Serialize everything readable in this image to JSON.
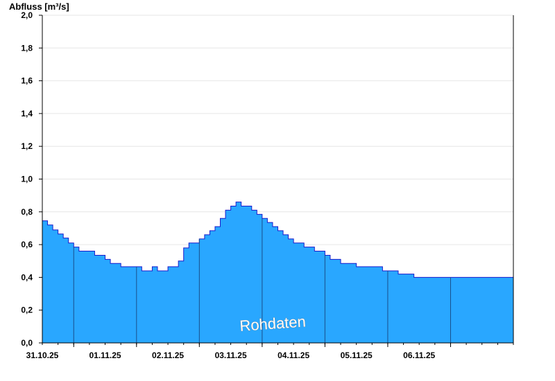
{
  "chart_data": {
    "type": "area",
    "ylabel": "Abfluss [m³/s]",
    "xlabel": "",
    "ylim": [
      0,
      2.0
    ],
    "yticks": [
      {
        "value": 0.0,
        "label": "0,0"
      },
      {
        "value": 0.2,
        "label": "0,2"
      },
      {
        "value": 0.4,
        "label": "0,4"
      },
      {
        "value": 0.6,
        "label": "0,6"
      },
      {
        "value": 0.8,
        "label": "0,8"
      },
      {
        "value": 1.0,
        "label": "1,0"
      },
      {
        "value": 1.2,
        "label": "1,2"
      },
      {
        "value": 1.4,
        "label": "1,4"
      },
      {
        "value": 1.6,
        "label": "1,6"
      },
      {
        "value": 1.8,
        "label": "1,8"
      },
      {
        "value": 2.0,
        "label": "2,0"
      }
    ],
    "xlim": [
      "2025-10-30T12:00",
      "2025-11-07T00:00"
    ],
    "xticks": [
      "31.10.25",
      "01.11.25",
      "02.11.25",
      "03.11.25",
      "04.11.25",
      "05.11.25",
      "06.11.25"
    ],
    "grid": true,
    "annotation": "Rohdaten",
    "colors": {
      "fill": "#29a7ff",
      "line": "#1a1acc",
      "grid": "#e6e6e6",
      "axis": "#000000",
      "day_divider": "#1a4f8a"
    },
    "series": [
      {
        "x": [
          "2025-10-30T12:00",
          "2025-10-30T14:00",
          "2025-10-30T16:00",
          "2025-10-30T18:00",
          "2025-10-30T20:00",
          "2025-10-30T22:00",
          "2025-10-31T00:00",
          "2025-10-31T02:00",
          "2025-10-31T04:00",
          "2025-10-31T06:00",
          "2025-10-31T08:00",
          "2025-10-31T10:00",
          "2025-10-31T12:00",
          "2025-10-31T14:00",
          "2025-10-31T16:00",
          "2025-10-31T18:00",
          "2025-10-31T20:00",
          "2025-10-31T22:00",
          "2025-11-01T00:00",
          "2025-11-01T02:00",
          "2025-11-01T04:00",
          "2025-11-01T06:00",
          "2025-11-01T08:00",
          "2025-11-01T10:00",
          "2025-11-01T12:00",
          "2025-11-01T14:00",
          "2025-11-01T16:00",
          "2025-11-01T18:00",
          "2025-11-01T20:00",
          "2025-11-01T22:00",
          "2025-11-02T00:00",
          "2025-11-02T02:00",
          "2025-11-02T04:00",
          "2025-11-02T06:00",
          "2025-11-02T08:00",
          "2025-11-02T10:00",
          "2025-11-02T12:00",
          "2025-11-02T14:00",
          "2025-11-02T16:00",
          "2025-11-02T18:00",
          "2025-11-02T20:00",
          "2025-11-02T22:00",
          "2025-11-03T00:00",
          "2025-11-03T02:00",
          "2025-11-03T04:00",
          "2025-11-03T06:00",
          "2025-11-03T08:00",
          "2025-11-03T10:00",
          "2025-11-03T12:00",
          "2025-11-03T14:00",
          "2025-11-03T16:00",
          "2025-11-03T18:00",
          "2025-11-03T20:00",
          "2025-11-03T22:00",
          "2025-11-04T00:00",
          "2025-11-04T02:00",
          "2025-11-04T04:00",
          "2025-11-04T06:00",
          "2025-11-04T08:00",
          "2025-11-04T10:00",
          "2025-11-04T12:00",
          "2025-11-04T14:00",
          "2025-11-04T16:00",
          "2025-11-04T18:00",
          "2025-11-04T20:00",
          "2025-11-04T22:00",
          "2025-11-05T00:00",
          "2025-11-05T02:00",
          "2025-11-05T04:00",
          "2025-11-05T06:00",
          "2025-11-05T08:00",
          "2025-11-05T10:00",
          "2025-11-05T12:00",
          "2025-11-05T14:00",
          "2025-11-05T16:00",
          "2025-11-05T18:00",
          "2025-11-05T20:00",
          "2025-11-05T22:00",
          "2025-11-06T00:00",
          "2025-11-06T02:00",
          "2025-11-06T04:00",
          "2025-11-06T06:00",
          "2025-11-06T08:00",
          "2025-11-06T10:00",
          "2025-11-06T12:00",
          "2025-11-06T14:00",
          "2025-11-06T16:00",
          "2025-11-06T18:00",
          "2025-11-06T20:00",
          "2025-11-06T22:00",
          "2025-11-07T00:00"
        ],
        "y": [
          0.745,
          0.72,
          0.69,
          0.665,
          0.64,
          0.61,
          0.585,
          0.56,
          0.56,
          0.56,
          0.535,
          0.535,
          0.51,
          0.485,
          0.485,
          0.465,
          0.465,
          0.465,
          0.465,
          0.44,
          0.44,
          0.465,
          0.44,
          0.44,
          0.465,
          0.465,
          0.5,
          0.58,
          0.61,
          0.61,
          0.635,
          0.66,
          0.685,
          0.71,
          0.76,
          0.81,
          0.835,
          0.86,
          0.835,
          0.835,
          0.81,
          0.785,
          0.76,
          0.735,
          0.71,
          0.685,
          0.66,
          0.635,
          0.61,
          0.61,
          0.585,
          0.585,
          0.56,
          0.56,
          0.535,
          0.51,
          0.51,
          0.485,
          0.485,
          0.485,
          0.465,
          0.465,
          0.465,
          0.465,
          0.465,
          0.44,
          0.44,
          0.44,
          0.42,
          0.42,
          0.42,
          0.4,
          0.4,
          0.4,
          0.4,
          0.4,
          0.4,
          0.4,
          0.4,
          0.4,
          0.4,
          0.4,
          0.4,
          0.4,
          0.4,
          0.4,
          0.4,
          0.4,
          0.4,
          0.4,
          0.4
        ]
      }
    ]
  }
}
